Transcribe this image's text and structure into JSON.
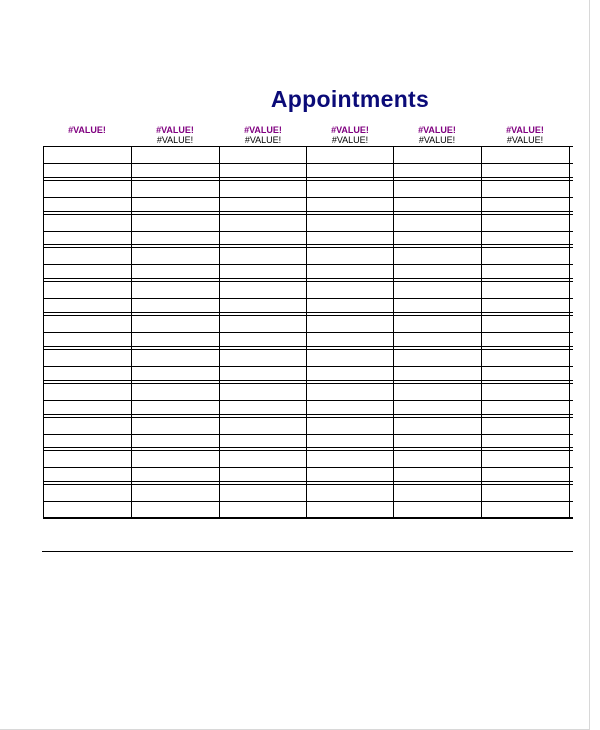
{
  "title": "Appointments",
  "columns": [
    {
      "line1": "#VALUE!",
      "line2": ""
    },
    {
      "line1": "#VALUE!",
      "line2": "#VALUE!"
    },
    {
      "line1": "#VALUE!",
      "line2": "#VALUE!"
    },
    {
      "line1": "#VALUE!",
      "line2": "#VALUE!"
    },
    {
      "line1": "#VALUE!",
      "line2": "#VALUE!"
    },
    {
      "line1": "#VALUE!",
      "line2": "#VALUE!"
    }
  ],
  "row_groups": 11,
  "rows_per_group": 2,
  "colors": {
    "title": "#0b0b78",
    "header_primary": "#800080",
    "header_secondary": "#000000"
  }
}
